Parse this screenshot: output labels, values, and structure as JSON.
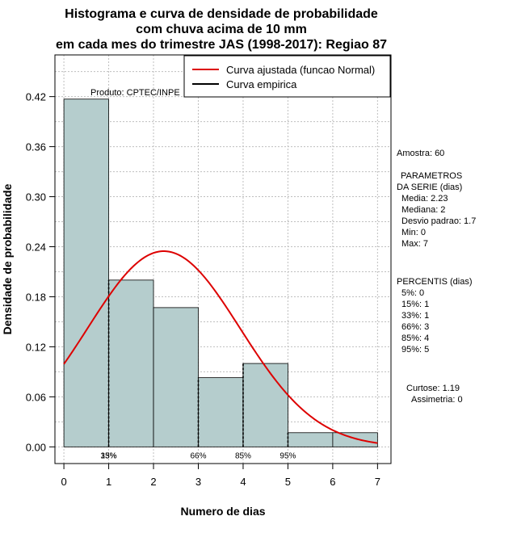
{
  "chart_data": {
    "type": "histogram",
    "title_lines": [
      "Histograma e curva de densidade de probabilidade",
      "com chuva acima de 10 mm",
      "em cada mes do trimestre JAS (1998-2017): Regiao 87"
    ],
    "xlabel": "Numero de dias",
    "ylabel": "Densidade de probabilidade",
    "xlim": [
      -0.2,
      7.3
    ],
    "ylim": [
      -0.02,
      0.47
    ],
    "x_ticks": [
      "0",
      "1",
      "2",
      "3",
      "4",
      "5",
      "6",
      "7"
    ],
    "y_ticks": [
      "0.00",
      "0.06",
      "0.12",
      "0.18",
      "0.24",
      "0.30",
      "0.36",
      "0.42"
    ],
    "bins": [
      {
        "from": 0,
        "to": 1,
        "density": 0.417
      },
      {
        "from": 1,
        "to": 2,
        "density": 0.2
      },
      {
        "from": 2,
        "to": 3,
        "density": 0.167
      },
      {
        "from": 3,
        "to": 4,
        "density": 0.083
      },
      {
        "from": 4,
        "to": 5,
        "density": 0.1
      },
      {
        "from": 5,
        "to": 6,
        "density": 0.017
      },
      {
        "from": 6,
        "to": 7,
        "density": 0.017
      }
    ],
    "fitted_curve": {
      "name": "Curva ajustada (funcao Normal)",
      "distribution": "normal",
      "mean": 2.23,
      "sd": 1.7,
      "x_range": [
        0,
        7
      ],
      "color": "#dd0000"
    },
    "empirical_curve": {
      "name": "Curva empirica",
      "color": "#000000"
    },
    "percentile_markers": [
      {
        "label": "15%",
        "x": 1,
        "top_x": 1
      },
      {
        "label": "33%",
        "x": 1,
        "top_x": 1
      },
      {
        "label": "66%",
        "x": 3,
        "top_x": 3
      },
      {
        "label": "85%",
        "x": 4,
        "top_x": 4
      },
      {
        "label": "95%",
        "x": 5,
        "top_x": 5
      }
    ],
    "bar_color": "#b5cdcd",
    "grid": true,
    "legend_position": "top-right"
  },
  "product_label": "Produto: CPTEC/INPE",
  "side_panel": {
    "sample": "Amostra: 60",
    "params_heading_1": "PARAMETROS",
    "params_heading_2": "DA SERIE (dias)",
    "params": [
      "Media: 2.23",
      "Mediana: 2",
      "Desvio padrao: 1.7",
      "Min: 0",
      "Max: 7"
    ],
    "percentis_heading": "PERCENTIS (dias)",
    "percentis": [
      "5%: 0",
      "15%: 1",
      "33%: 1",
      "66%: 3",
      "85%: 4",
      "95%: 5"
    ],
    "kurtosis": "Curtose: 1.19",
    "skewness": "Assimetria: 0"
  }
}
